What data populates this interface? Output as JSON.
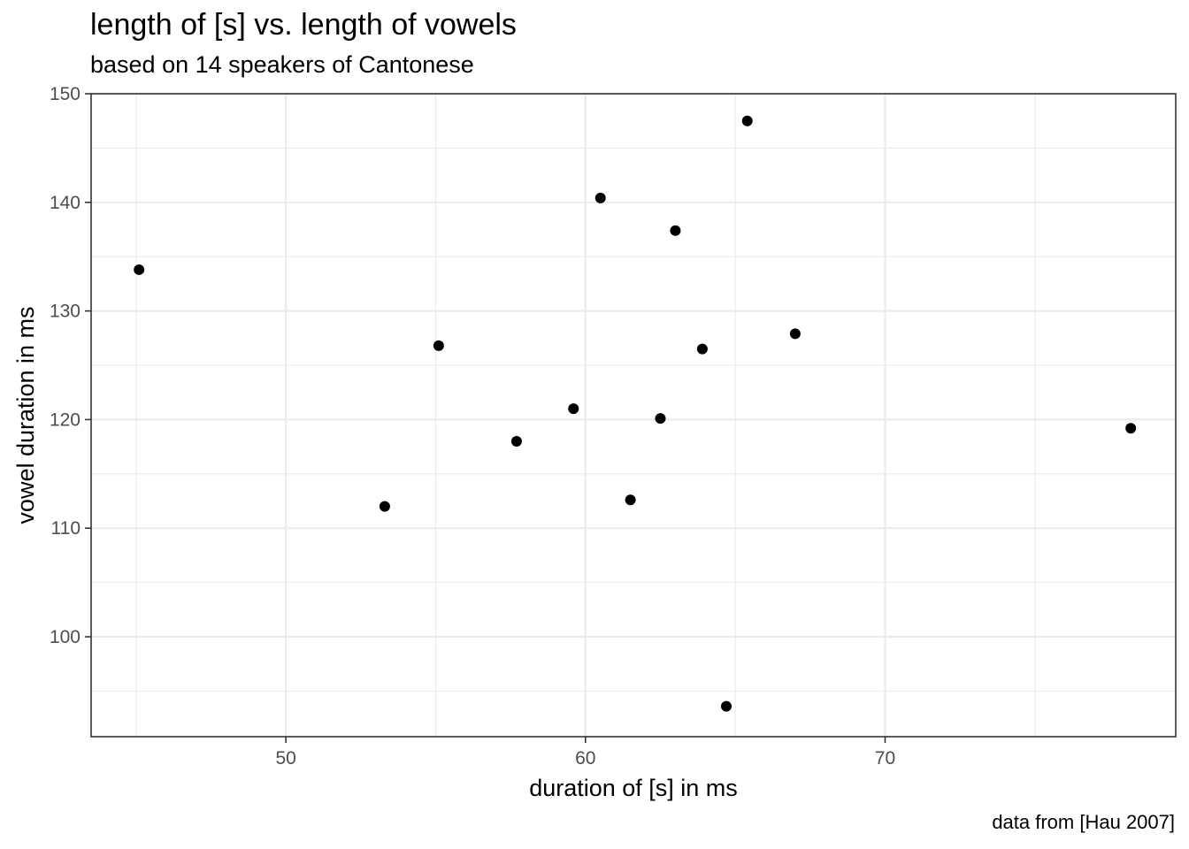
{
  "chart_data": {
    "type": "scatter",
    "title": "length of [s] vs. length of vowels",
    "subtitle": "based on 14 speakers of Cantonese",
    "caption": "data from [Hau 2007]",
    "xlabel": "duration of [s] in ms",
    "ylabel": "vowel duration in ms",
    "xlim": [
      43.5,
      79.7
    ],
    "ylim": [
      90.8,
      150.0
    ],
    "xticks": [
      50,
      60,
      70
    ],
    "yticks": [
      100,
      110,
      120,
      130,
      140,
      150
    ],
    "x_minor_grid": [
      45,
      55,
      65,
      75
    ],
    "y_minor_grid": [
      95,
      105,
      115,
      125,
      135,
      145
    ],
    "grid": true,
    "point_color": "#000000",
    "points": [
      {
        "x": 45.1,
        "y": 133.8
      },
      {
        "x": 53.3,
        "y": 112.0
      },
      {
        "x": 55.1,
        "y": 126.8
      },
      {
        "x": 57.7,
        "y": 118.0
      },
      {
        "x": 59.6,
        "y": 121.0
      },
      {
        "x": 60.5,
        "y": 140.4
      },
      {
        "x": 61.5,
        "y": 112.6
      },
      {
        "x": 62.5,
        "y": 120.1
      },
      {
        "x": 63.0,
        "y": 137.4
      },
      {
        "x": 63.9,
        "y": 126.5
      },
      {
        "x": 64.7,
        "y": 93.6
      },
      {
        "x": 65.4,
        "y": 147.5
      },
      {
        "x": 67.0,
        "y": 127.9
      },
      {
        "x": 78.2,
        "y": 119.2
      }
    ]
  }
}
